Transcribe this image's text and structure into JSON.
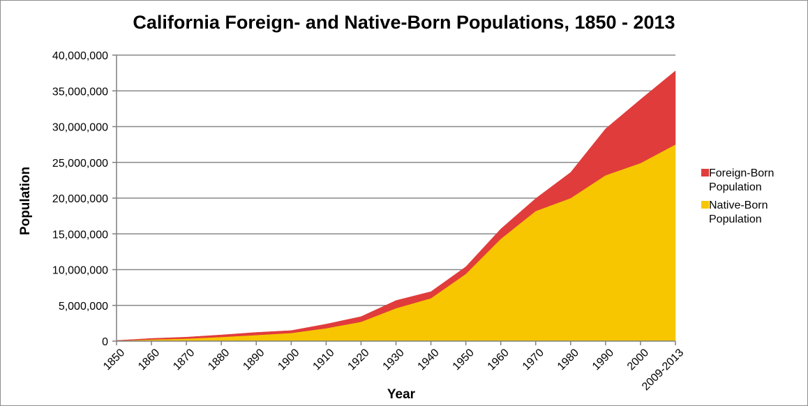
{
  "chart_data": {
    "type": "area",
    "stacked": true,
    "title": "California Foreign- and Native-Born Populations, 1850 - 2013",
    "xlabel": "Year",
    "ylabel": "Population",
    "categories": [
      "1850",
      "1860",
      "1870",
      "1880",
      "1890",
      "1900",
      "1910",
      "1920",
      "1930",
      "1940",
      "1950",
      "1960",
      "1970",
      "1980",
      "1990",
      "2000",
      "2009-2013"
    ],
    "series": [
      {
        "name": "Native-Born Population",
        "color": "#f7c600",
        "values": [
          70000,
          230000,
          350000,
          580000,
          850000,
          1140000,
          1800000,
          2700000,
          4600000,
          6000000,
          9400000,
          14300000,
          18200000,
          20000000,
          23200000,
          24900000,
          27500000
        ]
      },
      {
        "name": "Foreign-Born Population",
        "color": "#e03c3c",
        "values": [
          22000,
          150000,
          210000,
          290000,
          370000,
          340000,
          580000,
          730000,
          1080000,
          920000,
          1000000,
          1390000,
          1750000,
          3600000,
          6500000,
          8900000,
          10300000
        ]
      }
    ],
    "legend": {
      "position": "right",
      "entries": [
        {
          "lines": [
            "Foreign-Born",
            "Population"
          ],
          "color": "#e03c3c"
        },
        {
          "lines": [
            "Native-Born",
            "Population"
          ],
          "color": "#f7c600"
        }
      ]
    },
    "ylim": [
      0,
      40000000
    ],
    "yticks": [
      0,
      5000000,
      10000000,
      15000000,
      20000000,
      25000000,
      30000000,
      35000000,
      40000000
    ],
    "ytick_labels": [
      "0",
      "5,000,000",
      "10,000,000",
      "15,000,000",
      "20,000,000",
      "25,000,000",
      "30,000,000",
      "35,000,000",
      "40,000,000"
    ],
    "grid": {
      "horizontal": true,
      "color": "#888888"
    }
  }
}
